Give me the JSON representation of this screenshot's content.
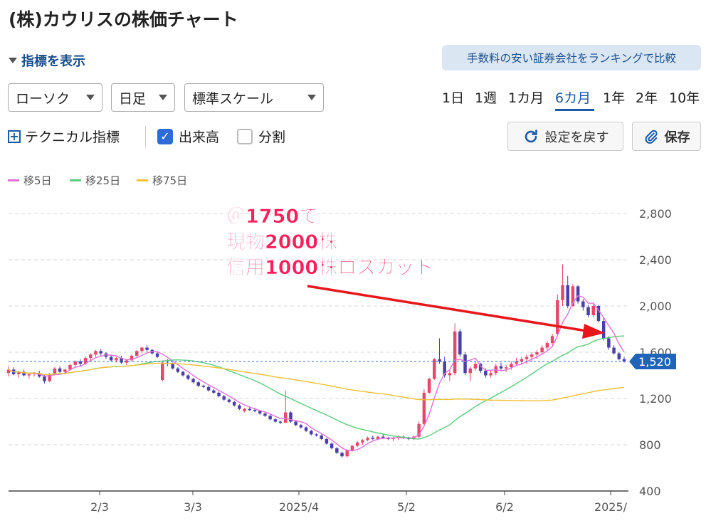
{
  "page": {
    "title": "(株)カウリスの株価チャート",
    "indicator_toggle": "指標を表示",
    "ranking_link": "手数料の安い証券会社をランキングで比較"
  },
  "controls": {
    "chart_type": "ローソク",
    "period": "日足",
    "scale": "標準スケール",
    "ranges": [
      "1日",
      "1週",
      "1カ月",
      "6カ月",
      "1年",
      "2年",
      "10年"
    ],
    "active_range": "6カ月",
    "technical": "テクニカル指標",
    "volume_label": "出来高",
    "volume_checked": true,
    "split_label": "分割",
    "split_checked": false,
    "reset_label": "設定を戻す",
    "save_label": "保存"
  },
  "legend": [
    {
      "label": "移5日",
      "color": "#e070d8"
    },
    {
      "label": "移25日",
      "color": "#5ccc7a"
    },
    {
      "label": "移75日",
      "color": "#f0c030"
    }
  ],
  "chart_data": {
    "type": "candlestick",
    "y_ticks": [
      "2,800",
      "2,400",
      "2,000",
      "1,600",
      "1,200",
      "800",
      "400"
    ],
    "ylim": [
      400,
      2800
    ],
    "x_ticks": [
      "2/3",
      "3/3",
      "2025/4",
      "5/2",
      "6/2",
      "2025/"
    ],
    "current_price": "1,520",
    "current_value": 1520,
    "up_color": "#e8476b",
    "down_color": "#4a3ea8",
    "annotation": [
      "＠1750で",
      "現物2000株",
      "信用1000株ロスカット"
    ],
    "annotation_color": "#ff1f5a",
    "arrow_color": "#e8161a",
    "candles": [
      [
        1420,
        1480,
        1390,
        1450
      ],
      [
        1450,
        1470,
        1400,
        1410
      ],
      [
        1410,
        1440,
        1380,
        1430
      ],
      [
        1430,
        1450,
        1390,
        1400
      ],
      [
        1400,
        1420,
        1370,
        1410
      ],
      [
        1410,
        1430,
        1390,
        1420
      ],
      [
        1420,
        1440,
        1380,
        1390
      ],
      [
        1390,
        1410,
        1330,
        1350
      ],
      [
        1350,
        1420,
        1340,
        1410
      ],
      [
        1410,
        1470,
        1400,
        1460
      ],
      [
        1460,
        1480,
        1420,
        1430
      ],
      [
        1430,
        1460,
        1410,
        1450
      ],
      [
        1450,
        1500,
        1440,
        1490
      ],
      [
        1490,
        1530,
        1470,
        1520
      ],
      [
        1520,
        1540,
        1480,
        1500
      ],
      [
        1500,
        1560,
        1490,
        1550
      ],
      [
        1550,
        1590,
        1530,
        1580
      ],
      [
        1580,
        1620,
        1560,
        1610
      ],
      [
        1610,
        1630,
        1570,
        1590
      ],
      [
        1590,
        1600,
        1540,
        1560
      ],
      [
        1560,
        1580,
        1520,
        1530
      ],
      [
        1530,
        1560,
        1510,
        1550
      ],
      [
        1550,
        1570,
        1500,
        1510
      ],
      [
        1510,
        1540,
        1490,
        1530
      ],
      [
        1530,
        1580,
        1520,
        1570
      ],
      [
        1570,
        1620,
        1560,
        1610
      ],
      [
        1610,
        1650,
        1590,
        1640
      ],
      [
        1640,
        1660,
        1600,
        1620
      ],
      [
        1620,
        1630,
        1580,
        1590
      ],
      [
        1590,
        1600,
        1550,
        1560
      ],
      [
        1360,
        1520,
        1350,
        1510
      ],
      [
        1510,
        1540,
        1480,
        1500
      ],
      [
        1500,
        1510,
        1450,
        1460
      ],
      [
        1460,
        1470,
        1420,
        1430
      ],
      [
        1430,
        1440,
        1390,
        1400
      ],
      [
        1400,
        1410,
        1360,
        1370
      ],
      [
        1370,
        1380,
        1330,
        1340
      ],
      [
        1340,
        1350,
        1300,
        1310
      ],
      [
        1310,
        1320,
        1290,
        1300
      ],
      [
        1300,
        1310,
        1260,
        1270
      ],
      [
        1270,
        1280,
        1240,
        1250
      ],
      [
        1250,
        1260,
        1210,
        1220
      ],
      [
        1220,
        1230,
        1180,
        1190
      ],
      [
        1190,
        1200,
        1160,
        1170
      ],
      [
        1170,
        1180,
        1130,
        1140
      ],
      [
        1140,
        1150,
        1100,
        1110
      ],
      [
        1090,
        1120,
        1080,
        1110
      ],
      [
        1110,
        1130,
        1090,
        1100
      ],
      [
        1100,
        1120,
        1080,
        1090
      ],
      [
        1090,
        1100,
        1060,
        1070
      ],
      [
        1070,
        1080,
        1040,
        1050
      ],
      [
        1050,
        1060,
        1010,
        1020
      ],
      [
        1020,
        1030,
        990,
        1000
      ],
      [
        1000,
        1010,
        980,
        990
      ],
      [
        990,
        1270,
        990,
        1080
      ],
      [
        1080,
        1090,
        990,
        1000
      ],
      [
        1000,
        1010,
        960,
        970
      ],
      [
        970,
        980,
        940,
        950
      ],
      [
        950,
        960,
        910,
        920
      ],
      [
        920,
        930,
        880,
        890
      ],
      [
        890,
        900,
        870,
        880
      ],
      [
        880,
        890,
        840,
        850
      ],
      [
        850,
        860,
        800,
        810
      ],
      [
        810,
        820,
        760,
        770
      ],
      [
        770,
        780,
        720,
        730
      ],
      [
        730,
        740,
        690,
        700
      ],
      [
        700,
        760,
        690,
        750
      ],
      [
        750,
        800,
        740,
        790
      ],
      [
        790,
        830,
        780,
        820
      ],
      [
        820,
        850,
        800,
        840
      ],
      [
        840,
        870,
        830,
        860
      ],
      [
        860,
        880,
        840,
        850
      ],
      [
        850,
        880,
        840,
        870
      ],
      [
        870,
        890,
        850,
        860
      ],
      [
        860,
        870,
        840,
        850
      ],
      [
        850,
        870,
        830,
        860
      ],
      [
        860,
        880,
        840,
        870
      ],
      [
        870,
        880,
        850,
        860
      ],
      [
        860,
        870,
        840,
        850
      ],
      [
        850,
        880,
        840,
        870
      ],
      [
        870,
        1000,
        860,
        980
      ],
      [
        980,
        1280,
        970,
        1250
      ],
      [
        1250,
        1380,
        1240,
        1370
      ],
      [
        1370,
        1550,
        1360,
        1540
      ],
      [
        1540,
        1720,
        1500,
        1520
      ],
      [
        1520,
        1560,
        1380,
        1400
      ],
      [
        1400,
        1450,
        1350,
        1420
      ],
      [
        1420,
        1850,
        1400,
        1780
      ],
      [
        1780,
        1800,
        1560,
        1580
      ],
      [
        1580,
        1600,
        1400,
        1420
      ],
      [
        1420,
        1480,
        1350,
        1460
      ],
      [
        1460,
        1520,
        1440,
        1500
      ],
      [
        1500,
        1510,
        1420,
        1440
      ],
      [
        1440,
        1460,
        1380,
        1400
      ],
      [
        1400,
        1440,
        1380,
        1420
      ],
      [
        1420,
        1500,
        1400,
        1480
      ],
      [
        1480,
        1510,
        1440,
        1460
      ],
      [
        1460,
        1490,
        1430,
        1470
      ],
      [
        1470,
        1520,
        1450,
        1500
      ],
      [
        1500,
        1550,
        1480,
        1520
      ],
      [
        1520,
        1560,
        1490,
        1540
      ],
      [
        1540,
        1580,
        1500,
        1560
      ],
      [
        1560,
        1600,
        1520,
        1580
      ],
      [
        1580,
        1620,
        1540,
        1600
      ],
      [
        1600,
        1660,
        1580,
        1640
      ],
      [
        1640,
        1700,
        1620,
        1680
      ],
      [
        1680,
        1760,
        1660,
        1740
      ],
      [
        1760,
        2100,
        1750,
        2050
      ],
      [
        2050,
        2360,
        2000,
        2180
      ],
      [
        2180,
        2260,
        1980,
        2000
      ],
      [
        2000,
        2190,
        1990,
        2170
      ],
      [
        2170,
        2180,
        2020,
        2040
      ],
      [
        2040,
        2060,
        1960,
        1990
      ],
      [
        1990,
        2010,
        1900,
        1920
      ],
      [
        1920,
        2020,
        1900,
        2000
      ],
      [
        2000,
        2010,
        1860,
        1870
      ],
      [
        1870,
        1900,
        1700,
        1720
      ],
      [
        1720,
        1740,
        1620,
        1640
      ],
      [
        1640,
        1660,
        1580,
        1590
      ],
      [
        1590,
        1600,
        1530,
        1540
      ],
      [
        1540,
        1560,
        1510,
        1520
      ]
    ]
  }
}
